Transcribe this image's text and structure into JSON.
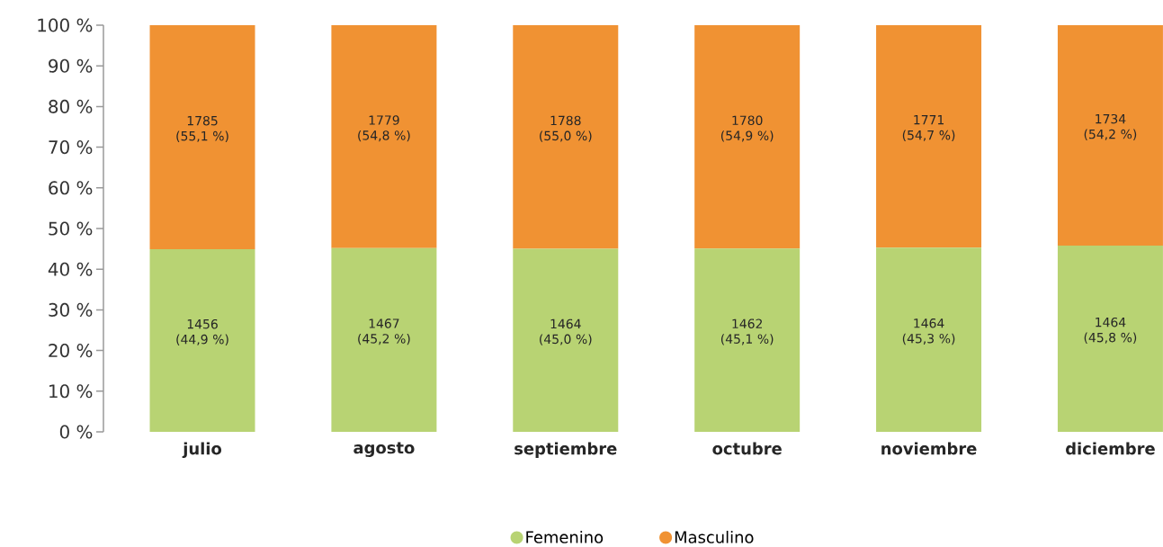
{
  "chart_data": {
    "type": "bar",
    "stacked": true,
    "categories": [
      "julio",
      "agosto",
      "septiembre",
      "octubre",
      "noviembre",
      "diciembre"
    ],
    "series": [
      {
        "name": "Femenino",
        "color": "#b8d373",
        "values": [
          44.9,
          45.2,
          45.0,
          45.1,
          45.3,
          45.8
        ],
        "value_labels": [
          "1456 (44,9 %)",
          "1467 (45,2 %)",
          "1464 (45,0 %)",
          "1462 (45,1 %)",
          "1464 (45,3 %)",
          "1464 (45,8 %)"
        ]
      },
      {
        "name": "Masculino",
        "color": "#f09233",
        "values": [
          55.1,
          54.8,
          55.0,
          54.9,
          54.7,
          54.2
        ],
        "value_labels": [
          "1785 (55,1 %)",
          "1779 (54,8 %)",
          "1788 (55,0 %)",
          "1780 (54,9 %)",
          "1771 (54,7 %)",
          "1734 (54,2 %)"
        ]
      }
    ],
    "ylim": [
      0,
      100
    ],
    "yticks": [
      {
        "value": 0,
        "label": "0 %"
      },
      {
        "value": 10,
        "label": "10 %"
      },
      {
        "value": 20,
        "label": "20 %"
      },
      {
        "value": 30,
        "label": "30 %"
      },
      {
        "value": 40,
        "label": "40 %"
      },
      {
        "value": 50,
        "label": "50 %"
      },
      {
        "value": 60,
        "label": "60 %"
      },
      {
        "value": 70,
        "label": "70 %"
      },
      {
        "value": 80,
        "label": "80 %"
      },
      {
        "value": 90,
        "label": "90 %"
      },
      {
        "value": 100,
        "label": "100 %"
      }
    ],
    "legend": "bottom",
    "marker": "circle"
  }
}
